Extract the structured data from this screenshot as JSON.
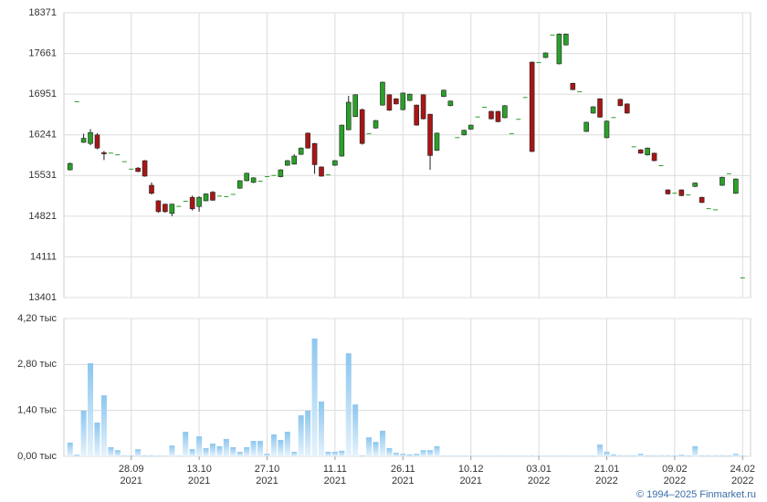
{
  "chart_data": {
    "type": "candlestick",
    "categories": [
      null,
      null,
      null,
      null,
      null,
      null,
      null,
      null,
      null,
      {
        "day": "28.09",
        "year": "2021"
      },
      null,
      null,
      null,
      null,
      null,
      null,
      null,
      null,
      null,
      {
        "day": "13.10",
        "year": "2021"
      },
      null,
      null,
      null,
      null,
      null,
      null,
      null,
      null,
      null,
      {
        "day": "27.10",
        "year": "2021"
      },
      null,
      null,
      null,
      null,
      null,
      null,
      null,
      null,
      null,
      {
        "day": "11.11",
        "year": "2021"
      },
      null,
      null,
      null,
      null,
      null,
      null,
      null,
      null,
      null,
      {
        "day": "26.11",
        "year": "2021"
      },
      null,
      null,
      null,
      null,
      null,
      null,
      null,
      null,
      null,
      {
        "day": "10.12",
        "year": "2021"
      },
      null,
      null,
      null,
      null,
      null,
      null,
      null,
      null,
      null,
      {
        "day": "03.01",
        "year": "2022"
      },
      null,
      null,
      null,
      null,
      null,
      null,
      null,
      null,
      null,
      {
        "day": "21.01",
        "year": "2022"
      },
      null,
      null,
      null,
      null,
      null,
      null,
      null,
      null,
      null,
      {
        "day": "09.02",
        "year": "2022"
      },
      null,
      null,
      null,
      null,
      null,
      null,
      null,
      null,
      null,
      {
        "day": "24.02",
        "year": "2022"
      }
    ],
    "open": [
      15630,
      16826,
      16110,
      16090,
      16240,
      15930,
      15930,
      15900,
      15780,
      15650,
      15660,
      15790,
      15360,
      15090,
      15030,
      14870,
      15000,
      15090,
      15150,
      14990,
      15090,
      15240,
      15180,
      15170,
      15210,
      15310,
      15440,
      15410,
      15440,
      15520,
      15540,
      15510,
      15710,
      15730,
      15900,
      16270,
      16090,
      15680,
      15550,
      15710,
      15870,
      16330,
      16560,
      16680,
      16270,
      16360,
      16760,
      16940,
      16870,
      16680,
      16840,
      16760,
      16940,
      16600,
      15970,
      16910,
      16750,
      16200,
      16240,
      16340,
      16560,
      16730,
      16650,
      16650,
      16540,
      16270,
      16520,
      16900,
      17510,
      17510,
      17590,
      17990,
      17480,
      17810,
      17140,
      17000,
      16300,
      16620,
      16870,
      16190,
      16550,
      16860,
      16780,
      16040,
      15980,
      15890,
      15920,
      15710,
      15280,
      15230,
      15280,
      15200,
      15340,
      15150,
      14960,
      14940,
      15360,
      15570,
      15220,
      13751
    ],
    "high": [
      15760,
      16826,
      16260,
      16340,
      16270,
      15960,
      15930,
      15900,
      15780,
      15650,
      15680,
      15800,
      15410,
      15100,
      15040,
      15040,
      15000,
      15090,
      15180,
      15170,
      15220,
      15260,
      15180,
      15170,
      15210,
      15450,
      15580,
      15500,
      15440,
      15520,
      15540,
      15640,
      15800,
      15900,
      16020,
      16280,
      16100,
      15690,
      15550,
      15800,
      16420,
      16920,
      16950,
      16700,
      16270,
      16500,
      17170,
      16950,
      16880,
      16980,
      16960,
      16770,
      16950,
      16610,
      16280,
      17030,
      16840,
      16200,
      16330,
      16420,
      16560,
      16730,
      16660,
      16660,
      16760,
      16270,
      16520,
      16900,
      17520,
      17510,
      17680,
      17990,
      18010,
      18010,
      17150,
      17000,
      16470,
      16740,
      16880,
      16490,
      16550,
      16870,
      16790,
      16040,
      15990,
      16020,
      15930,
      15710,
      15290,
      15230,
      15290,
      15200,
      15410,
      15160,
      14960,
      14940,
      15510,
      15570,
      15480,
      13751
    ],
    "low": [
      15620,
      16826,
      16100,
      16060,
      15990,
      15800,
      15930,
      15900,
      15780,
      15650,
      15590,
      15510,
      15200,
      14880,
      14880,
      14820,
      15000,
      15090,
      14920,
      14900,
      15080,
      15090,
      15180,
      15170,
      15210,
      15300,
      15430,
      15400,
      15440,
      15520,
      15540,
      15500,
      15700,
      15720,
      15890,
      16000,
      15560,
      15510,
      15550,
      15700,
      15860,
      16320,
      16550,
      16070,
      16270,
      16350,
      16750,
      16660,
      16770,
      16670,
      16830,
      16400,
      16510,
      15630,
      15960,
      16900,
      16740,
      16200,
      16230,
      16330,
      16560,
      16730,
      16510,
      16460,
      16530,
      16270,
      16520,
      16900,
      15940,
      17510,
      17580,
      17990,
      17470,
      17800,
      17020,
      17000,
      16290,
      16610,
      16540,
      16180,
      16550,
      16740,
      16610,
      16040,
      15910,
      15880,
      15780,
      15710,
      15200,
      15230,
      15170,
      15200,
      15330,
      15050,
      14960,
      14940,
      15350,
      15570,
      15210,
      13751
    ],
    "close": [
      15740,
      16826,
      16180,
      16280,
      16010,
      15910,
      15930,
      15900,
      15780,
      15650,
      15600,
      15520,
      15220,
      14900,
      14900,
      15030,
      15000,
      15090,
      14950,
      15150,
      15210,
      15100,
      15180,
      15170,
      15210,
      15440,
      15570,
      15490,
      15440,
      15520,
      15540,
      15630,
      15790,
      15870,
      16010,
      16010,
      15720,
      15520,
      15550,
      15790,
      16410,
      16810,
      16940,
      16090,
      16270,
      16490,
      17160,
      16670,
      16780,
      16970,
      16950,
      16410,
      16520,
      15880,
      16270,
      17020,
      16830,
      16200,
      16320,
      16410,
      16560,
      16730,
      16520,
      16470,
      16750,
      16270,
      16520,
      16900,
      15950,
      17510,
      17670,
      17990,
      18000,
      18000,
      17030,
      17000,
      16460,
      16730,
      16550,
      16480,
      16550,
      16750,
      16620,
      16040,
      15920,
      16010,
      15790,
      15710,
      15210,
      15230,
      15180,
      15200,
      15400,
      15060,
      14960,
      14940,
      15500,
      15570,
      15470,
      13751
    ],
    "volume": [
      0.42,
      0.05,
      1.39,
      2.84,
      1.03,
      1.86,
      0.28,
      0.19,
      0.03,
      0.03,
      0.22,
      0.03,
      0.03,
      0.02,
      0.02,
      0.33,
      0.02,
      0.75,
      0.22,
      0.61,
      0.25,
      0.39,
      0.31,
      0.53,
      0.28,
      0.14,
      0.28,
      0.47,
      0.47,
      0.08,
      0.67,
      0.5,
      0.75,
      0.14,
      1.25,
      1.39,
      3.59,
      1.67,
      0.14,
      0.14,
      0.17,
      3.14,
      1.58,
      0.03,
      0.58,
      0.44,
      0.78,
      0.25,
      0.11,
      0.08,
      0.06,
      0.08,
      0.19,
      0.19,
      0.31,
      0.02,
      0.02,
      0.02,
      0.02,
      0.02,
      0.02,
      0.02,
      0.02,
      0.02,
      0.02,
      0.02,
      0.02,
      0.02,
      0.02,
      0.02,
      0.02,
      0.02,
      0.02,
      0.02,
      0.02,
      0.02,
      0.02,
      0.02,
      0.36,
      0.14,
      0.06,
      0.03,
      0.03,
      0.03,
      0.08,
      0.03,
      0.03,
      0.03,
      0.03,
      0.03,
      0.05,
      0.03,
      0.31,
      0.03,
      0.03,
      0.03,
      0.03,
      0.03,
      0.08,
      0.03
    ],
    "up_color": "#2aa02a",
    "down_color": "#a81616",
    "volume_color": "#8cc6ef",
    "ylim": [
      13401,
      18371
    ],
    "yticks": [
      13401,
      14111,
      14821,
      15531,
      16241,
      16951,
      17661,
      18371
    ],
    "y2lim": [
      0,
      4.2
    ],
    "y2ticks": [
      {
        "value": 0,
        "label": "0,00 тыс"
      },
      {
        "value": 1.4,
        "label": "1,40 тыс"
      },
      {
        "value": 2.8,
        "label": "2,80 тыс"
      },
      {
        "value": 4.2,
        "label": "4,20 тыс"
      }
    ],
    "grid": true,
    "copyright": "© 1994–2025 Finmarket.ru"
  }
}
